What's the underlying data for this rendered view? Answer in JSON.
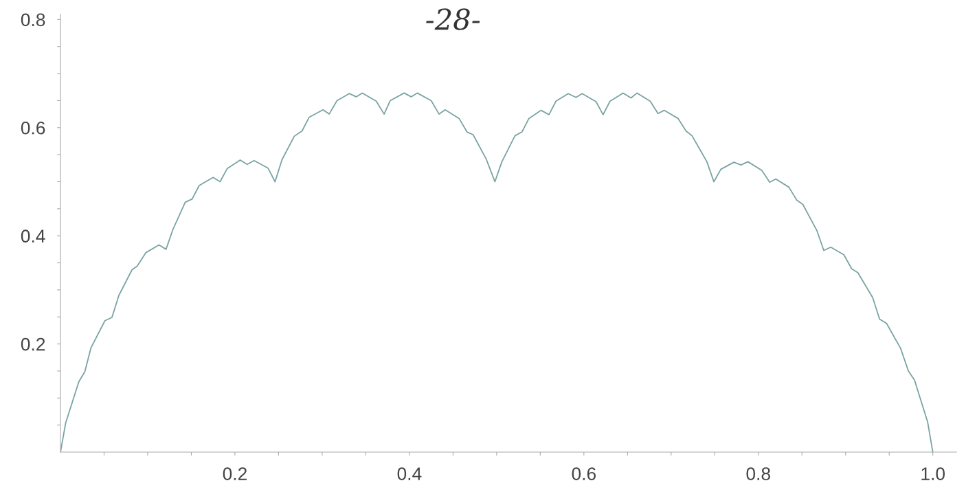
{
  "chart_data": {
    "type": "line",
    "annotations": [
      "-28-"
    ],
    "x": [
      0,
      0.006,
      0.021,
      0.028,
      0.035,
      0.051,
      0.059,
      0.067,
      0.082,
      0.088,
      0.098,
      0.113,
      0.121,
      0.129,
      0.143,
      0.151,
      0.159,
      0.175,
      0.183,
      0.191,
      0.206,
      0.214,
      0.222,
      0.238,
      0.246,
      0.254,
      0.268,
      0.277,
      0.285,
      0.301,
      0.308,
      0.317,
      0.331,
      0.339,
      0.346,
      0.362,
      0.371,
      0.378,
      0.394,
      0.402,
      0.409,
      0.425,
      0.434,
      0.441,
      0.457,
      0.466,
      0.473,
      0.488,
      0.498,
      0.506,
      0.521,
      0.529,
      0.537,
      0.551,
      0.56,
      0.568,
      0.582,
      0.591,
      0.598,
      0.614,
      0.622,
      0.63,
      0.645,
      0.654,
      0.661,
      0.676,
      0.685,
      0.692,
      0.708,
      0.717,
      0.724,
      0.741,
      0.749,
      0.757,
      0.772,
      0.78,
      0.788,
      0.804,
      0.813,
      0.82,
      0.835,
      0.844,
      0.851,
      0.867,
      0.875,
      0.883,
      0.898,
      0.907,
      0.914,
      0.931,
      0.939,
      0.947,
      0.963,
      0.972,
      0.979,
      0.994,
      1.0
    ],
    "series": [
      {
        "color": "#7aa3a3",
        "values": [
          0,
          0.054,
          0.13,
          0.149,
          0.193,
          0.243,
          0.249,
          0.29,
          0.337,
          0.344,
          0.369,
          0.383,
          0.375,
          0.412,
          0.462,
          0.468,
          0.493,
          0.508,
          0.5,
          0.524,
          0.54,
          0.532,
          0.539,
          0.525,
          0.5,
          0.541,
          0.584,
          0.594,
          0.619,
          0.633,
          0.625,
          0.65,
          0.663,
          0.657,
          0.664,
          0.649,
          0.625,
          0.65,
          0.664,
          0.657,
          0.664,
          0.65,
          0.625,
          0.633,
          0.617,
          0.592,
          0.587,
          0.542,
          0.5,
          0.537,
          0.585,
          0.592,
          0.617,
          0.632,
          0.624,
          0.649,
          0.663,
          0.656,
          0.663,
          0.648,
          0.624,
          0.649,
          0.664,
          0.655,
          0.664,
          0.649,
          0.626,
          0.632,
          0.617,
          0.594,
          0.585,
          0.537,
          0.5,
          0.523,
          0.536,
          0.531,
          0.537,
          0.521,
          0.499,
          0.505,
          0.49,
          0.466,
          0.458,
          0.41,
          0.373,
          0.379,
          0.365,
          0.339,
          0.332,
          0.286,
          0.246,
          0.238,
          0.192,
          0.15,
          0.133,
          0.056,
          0
        ]
      }
    ],
    "xlim": [
      0,
      1.027
    ],
    "ylim": [
      0,
      0.81
    ],
    "xticks": [
      {
        "value": 0.05,
        "label": null
      },
      {
        "value": 0.1,
        "label": null
      },
      {
        "value": 0.15,
        "label": null
      },
      {
        "value": 0.2,
        "label": "0.2"
      },
      {
        "value": 0.25,
        "label": null
      },
      {
        "value": 0.3,
        "label": null
      },
      {
        "value": 0.35,
        "label": null
      },
      {
        "value": 0.4,
        "label": "0.4"
      },
      {
        "value": 0.45,
        "label": null
      },
      {
        "value": 0.5,
        "label": null
      },
      {
        "value": 0.55,
        "label": null
      },
      {
        "value": 0.6,
        "label": "0.6"
      },
      {
        "value": 0.65,
        "label": null
      },
      {
        "value": 0.7,
        "label": null
      },
      {
        "value": 0.75,
        "label": null
      },
      {
        "value": 0.8,
        "label": "0.8"
      },
      {
        "value": 0.85,
        "label": null
      },
      {
        "value": 0.9,
        "label": null
      },
      {
        "value": 0.95,
        "label": null
      },
      {
        "value": 1.0,
        "label": "1.0"
      }
    ],
    "yticks": [
      {
        "value": 0.05,
        "label": null
      },
      {
        "value": 0.1,
        "label": null
      },
      {
        "value": 0.15,
        "label": null
      },
      {
        "value": 0.2,
        "label": "0.2"
      },
      {
        "value": 0.25,
        "label": null
      },
      {
        "value": 0.3,
        "label": null
      },
      {
        "value": 0.35,
        "label": null
      },
      {
        "value": 0.4,
        "label": "0.4"
      },
      {
        "value": 0.45,
        "label": null
      },
      {
        "value": 0.5,
        "label": null
      },
      {
        "value": 0.55,
        "label": null
      },
      {
        "value": 0.6,
        "label": "0.6"
      },
      {
        "value": 0.65,
        "label": null
      },
      {
        "value": 0.7,
        "label": null
      },
      {
        "value": 0.75,
        "label": null
      },
      {
        "value": 0.8,
        "label": "0.8"
      }
    ],
    "grid": false,
    "marker": "none",
    "line_style": "solid"
  }
}
